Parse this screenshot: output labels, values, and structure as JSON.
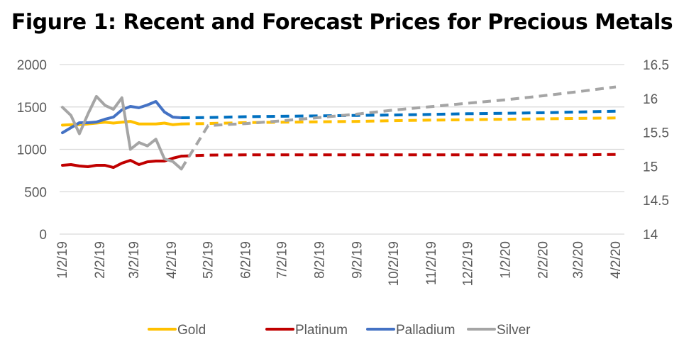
{
  "chart_data": {
    "type": "line",
    "title": "Figure 1: Recent and Forecast Prices for Precious Metals",
    "x_unit": "days since 1/2/19",
    "x_ticks": [
      {
        "day": 0,
        "label": "1/2/19"
      },
      {
        "day": 31,
        "label": "2/2/19"
      },
      {
        "day": 59,
        "label": "3/2/19"
      },
      {
        "day": 90,
        "label": "4/2/19"
      },
      {
        "day": 120,
        "label": "5/2/19"
      },
      {
        "day": 151,
        "label": "6/2/19"
      },
      {
        "day": 181,
        "label": "7/2/19"
      },
      {
        "day": 212,
        "label": "8/2/19"
      },
      {
        "day": 243,
        "label": "9/2/19"
      },
      {
        "day": 273,
        "label": "10/2/19"
      },
      {
        "day": 304,
        "label": "11/2/19"
      },
      {
        "day": 334,
        "label": "12/2/19"
      },
      {
        "day": 365,
        "label": "1/2/20"
      },
      {
        "day": 396,
        "label": "2/2/20"
      },
      {
        "day": 425,
        "label": "3/2/20"
      },
      {
        "day": 456,
        "label": "4/2/20"
      }
    ],
    "xlim": [
      0,
      456
    ],
    "y_left": {
      "ylim": [
        0,
        2000
      ],
      "ticks": [
        "0",
        "500",
        "1000",
        "1500",
        "2000"
      ],
      "tick_values": [
        0,
        500,
        1000,
        1500,
        2000
      ]
    },
    "y_right": {
      "ylim": [
        14,
        16.5
      ],
      "ticks": [
        "14",
        "14.5",
        "15",
        "15.5",
        "16",
        "16.5"
      ],
      "tick_values": [
        14,
        14.5,
        15,
        15.5,
        16,
        16.5
      ]
    },
    "grid": true,
    "legend_position": "bottom",
    "actual_x": [
      0,
      7,
      14,
      21,
      28,
      35,
      42,
      49,
      56,
      63,
      70,
      77,
      84,
      91,
      98
    ],
    "forecast_x": [
      98,
      120,
      151,
      181,
      212,
      243,
      273,
      304,
      334,
      365,
      396,
      425,
      456
    ],
    "series": [
      {
        "name": "Gold",
        "axis": "left",
        "color": "#FFC000",
        "actual": [
          1285,
          1290,
          1290,
          1300,
          1310,
          1320,
          1310,
          1320,
          1330,
          1300,
          1300,
          1300,
          1310,
          1290,
          1300
        ],
        "forecast": [
          1300,
          1305,
          1315,
          1320,
          1325,
          1330,
          1338,
          1345,
          1350,
          1355,
          1360,
          1365,
          1370
        ]
      },
      {
        "name": "Platinum",
        "axis": "left",
        "color": "#C00000",
        "actual": [
          812,
          820,
          803,
          795,
          812,
          812,
          786,
          837,
          870,
          820,
          853,
          862,
          862,
          895,
          920
        ],
        "forecast": [
          920,
          932,
          935,
          935,
          935,
          935,
          935,
          935,
          935,
          935,
          935,
          935,
          940
        ]
      },
      {
        "name": "Palladium",
        "axis": "left",
        "color": "#4472C4",
        "forecast_color": "#0070C0",
        "actual": [
          1196,
          1255,
          1314,
          1314,
          1322,
          1355,
          1380,
          1465,
          1506,
          1490,
          1523,
          1565,
          1440,
          1380,
          1372
        ],
        "forecast": [
          1372,
          1375,
          1385,
          1390,
          1395,
          1400,
          1405,
          1412,
          1420,
          1425,
          1432,
          1440,
          1450
        ]
      },
      {
        "name": "Silver",
        "axis": "right",
        "color": "#A5A5A5",
        "actual": [
          15.87,
          15.75,
          15.48,
          15.77,
          16.03,
          15.9,
          15.84,
          16.01,
          15.25,
          15.35,
          15.3,
          15.4,
          15.11,
          15.07,
          14.96
        ],
        "forecast": [
          14.96,
          15.6,
          15.63,
          15.67,
          15.72,
          15.77,
          15.83,
          15.88,
          15.93,
          15.98,
          16.04,
          16.1,
          16.17
        ]
      }
    ]
  }
}
